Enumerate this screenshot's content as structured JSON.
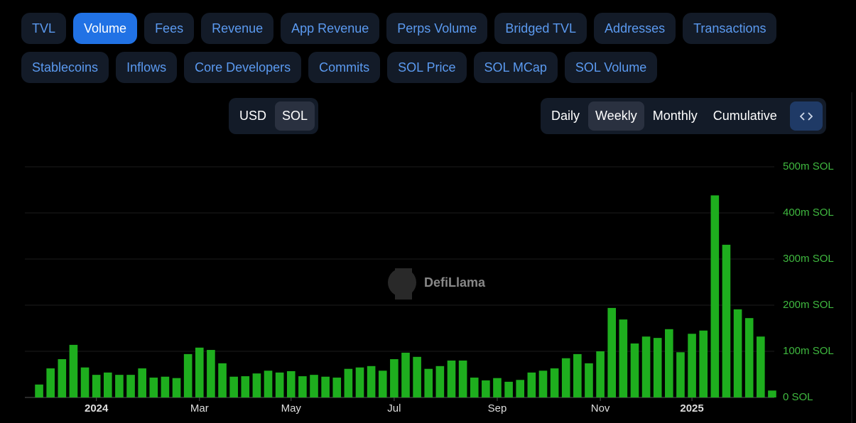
{
  "tabs": [
    "TVL",
    "Volume",
    "Fees",
    "Revenue",
    "App Revenue",
    "Perps Volume",
    "Bridged TVL",
    "Addresses",
    "Transactions",
    "Stablecoins",
    "Inflows",
    "Core Developers",
    "Commits",
    "SOL Price",
    "SOL MCap",
    "SOL Volume"
  ],
  "active_tab": 1,
  "units": [
    "USD",
    "SOL"
  ],
  "active_unit": 1,
  "periods": [
    "Daily",
    "Weekly",
    "Monthly",
    "Cumulative"
  ],
  "active_period": 1,
  "watermark": "DefiLlama",
  "chart_data": {
    "type": "bar",
    "categories": [
      null,
      null,
      null,
      null,
      null,
      "2024",
      null,
      null,
      null,
      null,
      null,
      null,
      null,
      null,
      "Mar",
      null,
      null,
      null,
      null,
      null,
      null,
      null,
      "May",
      null,
      null,
      null,
      null,
      null,
      null,
      null,
      null,
      "Jul",
      null,
      null,
      null,
      null,
      null,
      null,
      null,
      null,
      "Sep",
      null,
      null,
      null,
      null,
      null,
      null,
      null,
      null,
      "Nov",
      null,
      null,
      null,
      null,
      null,
      null,
      null,
      "2025",
      null,
      null,
      null,
      null,
      null,
      null,
      null
    ],
    "values": [
      28,
      63,
      83,
      114,
      65,
      49,
      54,
      49,
      49,
      63,
      43,
      45,
      42,
      94,
      108,
      103,
      74,
      45,
      46,
      52,
      58,
      54,
      57,
      46,
      49,
      45,
      43,
      62,
      65,
      68,
      58,
      83,
      97,
      88,
      62,
      68,
      80,
      80,
      43,
      37,
      42,
      34,
      38,
      54,
      58,
      63,
      85,
      94,
      74,
      100,
      194,
      169,
      117,
      132,
      129,
      148,
      98,
      138,
      145,
      438,
      331,
      191,
      172,
      132,
      15
    ],
    "color": "#1eae1e",
    "ylim": [
      0,
      500
    ],
    "yticks": [
      {
        "value": 0,
        "label": "0 SOL"
      },
      {
        "value": 100,
        "label": "100m SOL"
      },
      {
        "value": 200,
        "label": "200m SOL"
      },
      {
        "value": 300,
        "label": "300m SOL"
      },
      {
        "value": 400,
        "label": "400m SOL"
      },
      {
        "value": 500,
        "label": "500m SOL"
      }
    ],
    "grid": true
  }
}
